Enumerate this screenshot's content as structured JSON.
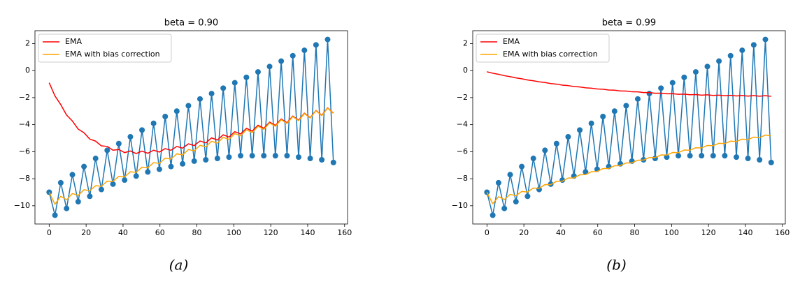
{
  "chart_data": [
    {
      "type": "line",
      "title": "beta = 0.90",
      "caption": "(a)",
      "x": [
        0,
        3.14,
        6.28,
        9.42,
        12.57,
        15.71,
        18.85,
        21.99,
        25.13,
        28.27,
        31.42,
        34.56,
        37.7,
        40.84,
        43.98,
        47.12,
        50.27,
        53.41,
        56.55,
        59.69,
        62.83,
        65.97,
        69.12,
        72.26,
        75.4,
        78.54,
        81.68,
        84.82,
        87.96,
        91.11,
        94.25,
        97.39,
        100.53,
        103.67,
        106.81,
        109.96,
        113.1,
        116.24,
        119.38,
        122.52,
        125.66,
        128.81,
        131.95,
        135.09,
        138.23,
        141.37,
        144.51,
        147.65,
        150.8,
        153.94
      ],
      "series": [
        {
          "color": "#1f77b4",
          "marker": "o",
          "values": [
            -9.0,
            -10.7,
            -8.3,
            -10.2,
            -7.7,
            -9.7,
            -7.1,
            -9.3,
            -6.5,
            -8.8,
            -5.9,
            -8.4,
            -5.4,
            -8.1,
            -4.9,
            -7.8,
            -4.4,
            -7.5,
            -3.9,
            -7.3,
            -3.4,
            -7.1,
            -3.0,
            -6.9,
            -2.6,
            -6.7,
            -2.1,
            -6.6,
            -1.7,
            -6.5,
            -1.3,
            -6.4,
            -0.9,
            -6.3,
            -0.5,
            -6.3,
            -0.1,
            -6.3,
            0.3,
            -6.3,
            0.7,
            -6.3,
            1.1,
            -6.4,
            1.5,
            -6.5,
            1.9,
            -6.6,
            2.3,
            -6.8
          ]
        },
        {
          "name": "EMA",
          "color": "red",
          "values": [
            -0.9,
            -1.88,
            -2.52,
            -3.29,
            -3.73,
            -4.33,
            -4.6,
            -5.07,
            -5.22,
            -5.57,
            -5.61,
            -5.89,
            -5.84,
            -6.07,
            -5.95,
            -6.14,
            -5.96,
            -6.12,
            -5.89,
            -6.03,
            -5.77,
            -5.9,
            -5.61,
            -5.74,
            -5.42,
            -5.55,
            -5.21,
            -5.35,
            -4.98,
            -5.14,
            -4.75,
            -4.92,
            -4.52,
            -4.69,
            -4.27,
            -4.48,
            -4.04,
            -4.27,
            -3.81,
            -4.06,
            -3.58,
            -3.86,
            -3.36,
            -3.67,
            -3.15,
            -3.48,
            -2.95,
            -3.31,
            -2.75,
            -3.15
          ]
        },
        {
          "name": "EMA with bias correction",
          "color": "orange",
          "values": [
            -9.0,
            -9.89,
            -9.3,
            -9.56,
            -9.1,
            -9.23,
            -8.81,
            -8.89,
            -8.52,
            -8.56,
            -8.18,
            -8.2,
            -7.83,
            -7.87,
            -7.49,
            -7.53,
            -7.15,
            -7.2,
            -6.81,
            -6.87,
            -6.48,
            -6.54,
            -6.16,
            -6.24,
            -5.84,
            -5.94,
            -5.53,
            -5.64,
            -5.23,
            -5.37,
            -4.94,
            -5.09,
            -4.66,
            -4.83,
            -4.38,
            -4.59,
            -4.12,
            -4.35,
            -3.87,
            -4.12,
            -3.63,
            -3.91,
            -3.4,
            -3.71,
            -3.18,
            -3.51,
            -2.97,
            -3.33,
            -2.77,
            -3.17
          ]
        }
      ],
      "xlim": [
        -7.7,
        161.6
      ],
      "ylim": [
        -11.35,
        2.95
      ],
      "xticks": [
        0,
        20,
        40,
        60,
        80,
        100,
        120,
        140,
        160
      ],
      "yticks": [
        {
          "value": -10,
          "label": "−10"
        },
        {
          "value": -8,
          "label": "−8"
        },
        {
          "value": -6,
          "label": "−6"
        },
        {
          "value": -4,
          "label": "−4"
        },
        {
          "value": -2,
          "label": "−2"
        },
        0,
        2
      ],
      "legend": "upper left"
    },
    {
      "type": "line",
      "title": "beta = 0.99",
      "caption": "(b)",
      "x": [
        0,
        3.14,
        6.28,
        9.42,
        12.57,
        15.71,
        18.85,
        21.99,
        25.13,
        28.27,
        31.42,
        34.56,
        37.7,
        40.84,
        43.98,
        47.12,
        50.27,
        53.41,
        56.55,
        59.69,
        62.83,
        65.97,
        69.12,
        72.26,
        75.4,
        78.54,
        81.68,
        84.82,
        87.96,
        91.11,
        94.25,
        97.39,
        100.53,
        103.67,
        106.81,
        109.96,
        113.1,
        116.24,
        119.38,
        122.52,
        125.66,
        128.81,
        131.95,
        135.09,
        138.23,
        141.37,
        144.51,
        147.65,
        150.8,
        153.94
      ],
      "series": [
        {
          "color": "#1f77b4",
          "marker": "o",
          "values": [
            -9.0,
            -10.7,
            -8.3,
            -10.2,
            -7.7,
            -9.7,
            -7.1,
            -9.3,
            -6.5,
            -8.8,
            -5.9,
            -8.4,
            -5.4,
            -8.1,
            -4.9,
            -7.8,
            -4.4,
            -7.5,
            -3.9,
            -7.3,
            -3.4,
            -7.1,
            -3.0,
            -6.9,
            -2.6,
            -6.7,
            -2.1,
            -6.6,
            -1.7,
            -6.5,
            -1.3,
            -6.4,
            -0.9,
            -6.3,
            -0.5,
            -6.3,
            -0.1,
            -6.3,
            0.3,
            -6.3,
            0.7,
            -6.3,
            1.1,
            -6.4,
            1.5,
            -6.5,
            1.9,
            -6.6,
            2.3,
            -6.8
          ]
        },
        {
          "name": "EMA",
          "color": "red",
          "values": [
            -0.09,
            -0.196,
            -0.277,
            -0.376,
            -0.449,
            -0.542,
            -0.607,
            -0.694,
            -0.752,
            -0.833,
            -0.883,
            -0.959,
            -1.003,
            -1.074,
            -1.112,
            -1.179,
            -1.211,
            -1.274,
            -1.3,
            -1.36,
            -1.38,
            -1.437,
            -1.453,
            -1.507,
            -1.518,
            -1.57,
            -1.575,
            -1.625,
            -1.626,
            -1.675,
            -1.671,
            -1.718,
            -1.71,
            -1.756,
            -1.743,
            -1.789,
            -1.772,
            -1.817,
            -1.796,
            -1.841,
            -1.816,
            -1.861,
            -1.831,
            -1.877,
            -1.843,
            -1.89,
            -1.852,
            -1.899,
            -1.857,
            -1.906
          ]
        },
        {
          "name": "EMA with bias correction",
          "color": "orange",
          "values": [
            -9.0,
            -9.85,
            -9.33,
            -9.54,
            -9.16,
            -9.26,
            -8.94,
            -8.98,
            -8.69,
            -8.71,
            -8.43,
            -8.44,
            -8.19,
            -8.18,
            -7.95,
            -7.94,
            -7.71,
            -7.7,
            -7.48,
            -7.47,
            -7.25,
            -7.24,
            -7.04,
            -7.03,
            -6.83,
            -6.83,
            -6.63,
            -6.62,
            -6.43,
            -6.43,
            -6.24,
            -6.25,
            -6.06,
            -6.07,
            -5.88,
            -5.89,
            -5.71,
            -5.72,
            -5.54,
            -5.56,
            -5.38,
            -5.4,
            -5.22,
            -5.25,
            -5.07,
            -5.11,
            -4.92,
            -4.96,
            -4.77,
            -4.83
          ]
        }
      ],
      "xlim": [
        -7.7,
        161.6
      ],
      "ylim": [
        -11.35,
        2.95
      ],
      "xticks": [
        0,
        20,
        40,
        60,
        80,
        100,
        120,
        140,
        160
      ],
      "yticks": [
        {
          "value": -10,
          "label": "−10"
        },
        {
          "value": -8,
          "label": "−8"
        },
        {
          "value": -6,
          "label": "−6"
        },
        {
          "value": -4,
          "label": "−4"
        },
        {
          "value": -2,
          "label": "−2"
        },
        0,
        2
      ],
      "legend": "upper left"
    }
  ]
}
